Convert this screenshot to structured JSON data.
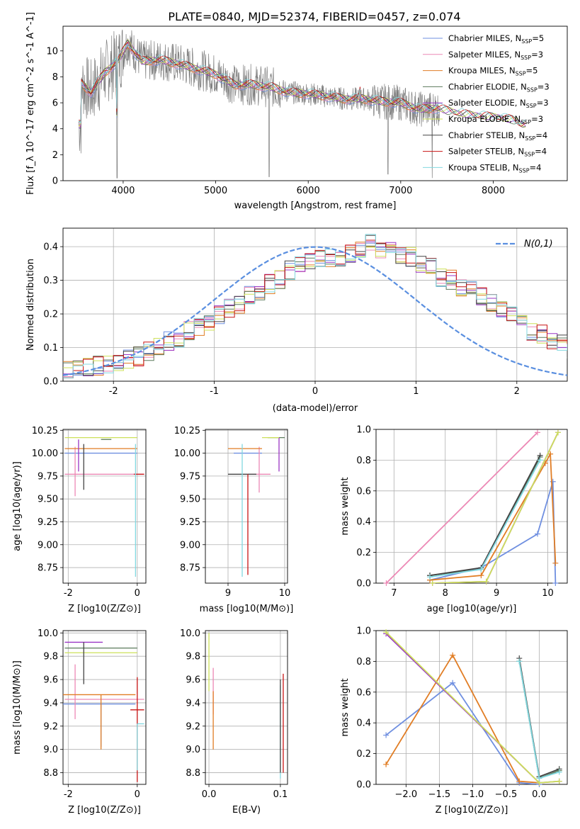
{
  "colors": {
    "Chabrier MILES": "#6f8fe0",
    "Salpeter MILES": "#ec88b5",
    "Kroupa MILES": "#e17d24",
    "Chabrier ELODIE": "#5c7a5c",
    "Salpeter ELODIE": "#9a36c4",
    "Kroupa ELODIE": "#cde05a",
    "Chabrier STELIB": "#444444",
    "Salpeter STELIB": "#c81414",
    "Kroupa STELIB": "#82d8e0",
    "data": "#808080",
    "gaussian": "#5a8fe0"
  },
  "chart_data": [
    {
      "id": "spectrum",
      "type": "line",
      "title": "PLATE=0840, MJD=52374, FIBERID=0457, z=0.074",
      "xlabel": "wavelength [Angstrom, rest frame]",
      "ylabel": "Flux [f_λ 10^-17 erg cm^-2 s^-1 A^-1]",
      "xlim": [
        3350,
        8800
      ],
      "ylim": [
        0,
        11.9
      ],
      "xticks": [
        "4000",
        "5000",
        "6000",
        "7000",
        "8000"
      ],
      "yticks": [
        "0",
        "2",
        "4",
        "6",
        "8",
        "10"
      ],
      "grid": false,
      "legend_position": "top-right",
      "legend": [
        {
          "label": "Chabrier MILES, N",
          "sub": "SSP",
          "tail": "=5"
        },
        {
          "label": "Salpeter MILES, N",
          "sub": "SSP",
          "tail": "=3"
        },
        {
          "label": "Kroupa MILES, N",
          "sub": "SSP",
          "tail": "=5"
        },
        {
          "label": "Chabrier ELODIE, N",
          "sub": "SSP",
          "tail": "=3"
        },
        {
          "label": "Salpeter ELODIE, N",
          "sub": "SSP",
          "tail": "=3"
        },
        {
          "label": "Kroupa ELODIE, N",
          "sub": "SSP",
          "tail": "=3"
        },
        {
          "label": "Chabrier STELIB, N",
          "sub": "SSP",
          "tail": "=4"
        },
        {
          "label": "Salpeter STELIB, N",
          "sub": "SSP",
          "tail": "=4"
        },
        {
          "label": "Kroupa STELIB, N",
          "sub": "SSP",
          "tail": "=4"
        }
      ],
      "continuum": {
        "x": [
          3550,
          3650,
          3800,
          3950,
          4050,
          4200,
          4400,
          4600,
          4800,
          5000,
          5200,
          5400,
          5600,
          5800,
          6000,
          6200,
          6400,
          6600,
          6800,
          7000,
          7200,
          7400,
          7600,
          7800,
          8000,
          8200,
          8300
        ],
        "y": [
          7.5,
          6.8,
          8.3,
          9.3,
          10.6,
          9.2,
          9.3,
          9.0,
          8.6,
          8.2,
          7.4,
          7.4,
          7.2,
          6.8,
          6.7,
          6.5,
          6.3,
          6.3,
          6.1,
          6.0,
          5.5,
          5.6,
          5.2,
          5.0,
          4.9,
          4.7,
          4.3
        ]
      }
    },
    {
      "id": "residuals",
      "type": "step",
      "xlabel": "(data-model)/error",
      "ylabel": "Normed distribution",
      "xlim": [
        -2.5,
        2.5
      ],
      "ylim": [
        0,
        0.455
      ],
      "xticks": [
        -2,
        -1,
        0,
        1,
        2
      ],
      "yticks": [
        0.0,
        0.1,
        0.2,
        0.3,
        0.4
      ],
      "grid": true,
      "legend_position": "top-right",
      "gaussian_label": "N(0,1)",
      "bin_width": 0.1,
      "bin_start": -2.5,
      "base": [
        0.03,
        0.035,
        0.04,
        0.045,
        0.05,
        0.055,
        0.065,
        0.075,
        0.09,
        0.1,
        0.12,
        0.13,
        0.15,
        0.16,
        0.18,
        0.2,
        0.22,
        0.23,
        0.26,
        0.27,
        0.29,
        0.3,
        0.33,
        0.34,
        0.36,
        0.36,
        0.37,
        0.37,
        0.38,
        0.39,
        0.41,
        0.39,
        0.4,
        0.38,
        0.37,
        0.35,
        0.34,
        0.31,
        0.3,
        0.28,
        0.27,
        0.25,
        0.23,
        0.21,
        0.2,
        0.17,
        0.15,
        0.14,
        0.12,
        0.11,
        0.09,
        0.08,
        0.065,
        0.06,
        0.05,
        0.04,
        0.035,
        0.03,
        0.028,
        0.025
      ],
      "gaussian": {
        "mean": 0,
        "sigma": 1
      }
    },
    {
      "id": "age-vs-z",
      "type": "errorbar",
      "xlabel": "Z [log10(Z/Z⊙)]",
      "ylabel": "age [log10(age/yr)]",
      "xlim": [
        -2.15,
        0.25
      ],
      "ylim": [
        8.58,
        10.26
      ],
      "xticks": [
        -2,
        0
      ],
      "yticks": [
        8.75,
        9.0,
        9.25,
        9.5,
        9.75,
        10.0,
        10.25
      ],
      "grid": true,
      "points": [
        {
          "model": "Chabrier MILES",
          "x": -1.0,
          "xerr": [
            1.1,
            1.0
          ],
          "y": 10.0,
          "yerr": [
            0.0,
            0.0
          ]
        },
        {
          "model": "Salpeter MILES",
          "x": -1.8,
          "xerr": [
            0.3,
            2.0
          ],
          "y": 9.77,
          "yerr": [
            0.24,
            0.3
          ]
        },
        {
          "model": "Kroupa MILES",
          "x": -1.0,
          "xerr": [
            1.1,
            1.0
          ],
          "y": 10.05,
          "yerr": [
            0.0,
            0.0
          ]
        },
        {
          "model": "Chabrier ELODIE",
          "x": -0.95,
          "xerr": [
            0.1,
            0.2
          ],
          "y": 10.15,
          "yerr": [
            0.0,
            0.0
          ]
        },
        {
          "model": "Salpeter ELODIE",
          "x": -1.7,
          "xerr": [
            0.0,
            0.0
          ],
          "y": 10.0,
          "yerr": [
            0.2,
            0.15
          ]
        },
        {
          "model": "Kroupa ELODIE",
          "x": -1.0,
          "xerr": [
            1.1,
            1.0
          ],
          "y": 10.17,
          "yerr": [
            0.0,
            0.0
          ]
        },
        {
          "model": "Chabrier STELIB",
          "x": -1.55,
          "xerr": [
            0.0,
            0.0
          ],
          "y": 9.9,
          "yerr": [
            0.3,
            0.2
          ]
        },
        {
          "model": "Salpeter STELIB",
          "x": 0.0,
          "xerr": [
            0.1,
            0.2
          ],
          "y": 9.77,
          "yerr": [
            0.0,
            0.0
          ]
        },
        {
          "model": "Kroupa STELIB",
          "x": -0.05,
          "xerr": [
            0.0,
            0.0
          ],
          "y": 9.75,
          "yerr": [
            1.1,
            0.35
          ]
        }
      ]
    },
    {
      "id": "age-vs-mass",
      "type": "errorbar",
      "xlabel": "mass [log10(M/M⊙)]",
      "ylabel": "",
      "xlim": [
        8.6,
        10.05
      ],
      "ylim": [
        8.58,
        10.26
      ],
      "xticks": [
        9,
        10
      ],
      "yticks": [
        8.75,
        9.0,
        9.25,
        9.5,
        9.75,
        10.0,
        10.25
      ],
      "grid": true,
      "points": [
        {
          "model": "Chabrier MILES",
          "x": 9.4,
          "xerr": [
            0.3,
            0.2
          ],
          "y": 10.0,
          "yerr": [
            0.0,
            0.0
          ]
        },
        {
          "model": "Salpeter MILES",
          "x": 9.55,
          "xerr": [
            0.2,
            0.2
          ],
          "y": 9.77,
          "yerr": [
            0.2,
            0.3
          ]
        },
        {
          "model": "Kroupa MILES",
          "x": 9.4,
          "xerr": [
            0.4,
            0.2
          ],
          "y": 10.05,
          "yerr": [
            0.0,
            0.0
          ]
        },
        {
          "model": "Chabrier ELODIE",
          "x": 9.9,
          "xerr": [
            0.2,
            0.1
          ],
          "y": 10.17,
          "yerr": [
            0.0,
            0.0
          ]
        },
        {
          "model": "Salpeter ELODIE",
          "x": 9.9,
          "xerr": [
            0.0,
            0.0
          ],
          "y": 10.0,
          "yerr": [
            0.2,
            0.17
          ]
        },
        {
          "model": "Kroupa ELODIE",
          "x": 9.8,
          "xerr": [
            0.2,
            0.1
          ],
          "y": 10.17,
          "yerr": [
            0.0,
            0.0
          ]
        },
        {
          "model": "Chabrier STELIB",
          "x": 9.3,
          "xerr": [
            0.3,
            0.2
          ],
          "y": 9.77,
          "yerr": [
            0.0,
            0.0
          ]
        },
        {
          "model": "Salpeter STELIB",
          "x": 9.35,
          "xerr": [
            0.0,
            0.0
          ],
          "y": 9.77,
          "yerr": [
            1.1,
            0.0
          ]
        },
        {
          "model": "Kroupa STELIB",
          "x": 9.25,
          "xerr": [
            0.0,
            0.0
          ],
          "y": 9.75,
          "yerr": [
            1.1,
            0.35
          ]
        }
      ]
    },
    {
      "id": "massweight-vs-age",
      "type": "line",
      "xlabel": "age [log10(age/yr)]",
      "ylabel": "mass weight",
      "xlim": [
        6.65,
        10.38
      ],
      "ylim": [
        0,
        1
      ],
      "xticks": [
        7,
        8,
        9,
        10
      ],
      "yticks": [
        0.0,
        0.2,
        0.4,
        0.6,
        0.8,
        1.0
      ],
      "grid": true,
      "series": [
        {
          "model": "Salpeter MILES",
          "x": [
            6.85,
            9.8
          ],
          "y": [
            0.0,
            0.98
          ]
        },
        {
          "model": "Chabrier MILES",
          "x": [
            7.7,
            8.7,
            9.8,
            10.1,
            10.15
          ],
          "y": [
            0.02,
            0.1,
            0.32,
            0.66,
            0.0
          ]
        },
        {
          "model": "Kroupa MILES",
          "x": [
            7.7,
            8.7,
            9.95,
            10.05,
            10.15
          ],
          "y": [
            0.02,
            0.05,
            0.78,
            0.84,
            0.13
          ]
        },
        {
          "model": "Chabrier ELODIE",
          "x": [
            7.7,
            8.7,
            9.85
          ],
          "y": [
            0.05,
            0.09,
            0.82
          ]
        },
        {
          "model": "Salpeter ELODIE",
          "x": [
            7.75,
            8.8,
            10.2
          ],
          "y": [
            0.0,
            0.01,
            0.98
          ]
        },
        {
          "model": "Kroupa ELODIE",
          "x": [
            7.75,
            8.8,
            10.2
          ],
          "y": [
            0.0,
            0.01,
            0.98
          ]
        },
        {
          "model": "Chabrier STELIB",
          "x": [
            7.7,
            8.7,
            9.85
          ],
          "y": [
            0.05,
            0.1,
            0.83
          ]
        },
        {
          "model": "Kroupa STELIB",
          "x": [
            7.7,
            8.7,
            9.85
          ],
          "y": [
            0.04,
            0.09,
            0.8
          ]
        }
      ]
    },
    {
      "id": "mass-vs-z",
      "type": "errorbar",
      "xlabel": "Z [log10(Z/Z⊙)]",
      "ylabel": "mass [log10(M/M⊙)]",
      "xlim": [
        -2.15,
        0.25
      ],
      "ylim": [
        8.7,
        10.02
      ],
      "xticks": [
        -2,
        0
      ],
      "yticks": [
        8.8,
        9.0,
        9.2,
        9.4,
        9.6,
        9.8,
        10.0
      ],
      "grid": true,
      "points": [
        {
          "model": "Chabrier MILES",
          "x": -1.05,
          "xerr": [
            1.1,
            1.0
          ],
          "y": 9.39,
          "yerr": [
            0.37,
            0.0
          ]
        },
        {
          "model": "Salpeter MILES",
          "x": -1.8,
          "xerr": [
            0.3,
            2.0
          ],
          "y": 9.43,
          "yerr": [
            0.17,
            0.3
          ]
        },
        {
          "model": "Kroupa MILES",
          "x": -1.05,
          "xerr": [
            1.1,
            1.0
          ],
          "y": 9.47,
          "yerr": [
            0.47,
            0.0
          ]
        },
        {
          "model": "Chabrier ELODIE",
          "x": -1.0,
          "xerr": [
            1.1,
            1.0
          ],
          "y": 9.87,
          "yerr": [
            0.0,
            0.0
          ]
        },
        {
          "model": "Salpeter ELODIE",
          "x": -1.0,
          "xerr": [
            1.1,
            0.0
          ],
          "y": 9.92,
          "yerr": [
            0.0,
            0.0
          ]
        },
        {
          "model": "Kroupa ELODIE",
          "x": -1.0,
          "xerr": [
            1.1,
            1.0
          ],
          "y": 9.83,
          "yerr": [
            0.0,
            0.0
          ]
        },
        {
          "model": "Chabrier STELIB",
          "x": -1.55,
          "xerr": [
            0.0,
            0.0
          ],
          "y": 9.84,
          "yerr": [
            0.28,
            0.08
          ]
        },
        {
          "model": "Salpeter STELIB",
          "x": 0.0,
          "xerr": [
            0.2,
            0.2
          ],
          "y": 9.34,
          "yerr": [
            0.62,
            0.28
          ]
        },
        {
          "model": "Kroupa STELIB",
          "x": 0.0,
          "xerr": [
            0.0,
            0.2
          ],
          "y": 9.22,
          "yerr": [
            0.4,
            0.0
          ]
        }
      ]
    },
    {
      "id": "mass-vs-ebv",
      "type": "errorbar",
      "xlabel": "E(B-V)",
      "ylabel": "",
      "xlim": [
        -0.005,
        0.11
      ],
      "ylim": [
        8.7,
        10.02
      ],
      "xticks": [
        "0.0",
        "0.1"
      ],
      "yticks": [
        8.8,
        9.0,
        9.2,
        9.4,
        9.6,
        9.8,
        10.0
      ],
      "grid": true,
      "points": [
        {
          "model": "Kroupa ELODIE",
          "x": 0.0,
          "xerr": [
            0.0,
            0.0
          ],
          "y": 9.85,
          "yerr": [
            0.35,
            0.15
          ]
        },
        {
          "model": "Salpeter MILES",
          "x": 0.006,
          "xerr": [
            0.0,
            0.0
          ],
          "y": 9.5,
          "yerr": [
            0.2,
            0.2
          ]
        },
        {
          "model": "Kroupa MILES",
          "x": 0.006,
          "xerr": [
            0.0,
            0.0
          ],
          "y": 9.4,
          "yerr": [
            0.4,
            0.1
          ]
        },
        {
          "model": "Kroupa STELIB",
          "x": 0.1,
          "xerr": [
            0.0,
            0.0
          ],
          "y": 9.2,
          "yerr": [
            0.45,
            0.35
          ]
        },
        {
          "model": "Chabrier STELIB",
          "x": 0.1,
          "xerr": [
            0.0,
            0.0
          ],
          "y": 9.2,
          "yerr": [
            0.4,
            0.4
          ]
        },
        {
          "model": "Salpeter STELIB",
          "x": 0.104,
          "xerr": [
            0.0,
            0.0
          ],
          "y": 9.2,
          "yerr": [
            0.4,
            0.45
          ]
        }
      ]
    },
    {
      "id": "massweight-vs-z",
      "type": "line",
      "xlabel": "Z [log10(Z/Z⊙)]",
      "ylabel": "mass weight",
      "xlim": [
        -2.45,
        0.42
      ],
      "ylim": [
        0,
        1
      ],
      "xticks": [
        "−2.0",
        "−1.5",
        "−1.0",
        "−0.5",
        "0.0"
      ],
      "xtick_values": [
        -2.0,
        -1.5,
        -1.0,
        -0.5,
        0.0
      ],
      "yticks": [
        0.0,
        0.2,
        0.4,
        0.6,
        0.8,
        1.0
      ],
      "grid": true,
      "series": [
        {
          "model": "Chabrier MILES",
          "x": [
            -2.3,
            -1.3,
            -0.3,
            0.0
          ],
          "y": [
            0.32,
            0.66,
            0.01,
            0.0
          ]
        },
        {
          "model": "Kroupa MILES",
          "x": [
            -2.3,
            -1.3,
            -0.3,
            0.0
          ],
          "y": [
            0.13,
            0.84,
            0.02,
            0.01
          ]
        },
        {
          "model": "Salpeter ELODIE",
          "x": [
            -2.3,
            0.0,
            0.3
          ],
          "y": [
            0.98,
            0.01,
            0.02
          ]
        },
        {
          "model": "Kroupa ELODIE",
          "x": [
            -2.3,
            0.0,
            0.3
          ],
          "y": [
            0.99,
            0.01,
            0.02
          ]
        },
        {
          "model": "Chabrier STELIB",
          "x": [
            -0.3,
            0.0,
            0.3
          ],
          "y": [
            0.82,
            0.05,
            0.1
          ]
        },
        {
          "model": "Chabrier ELODIE",
          "x": [
            -0.3,
            0.0,
            0.3
          ],
          "y": [
            0.8,
            0.04,
            0.09
          ]
        },
        {
          "model": "Kroupa STELIB",
          "x": [
            -0.3,
            0.0,
            0.3
          ],
          "y": [
            0.8,
            0.04,
            0.08
          ]
        }
      ]
    }
  ]
}
